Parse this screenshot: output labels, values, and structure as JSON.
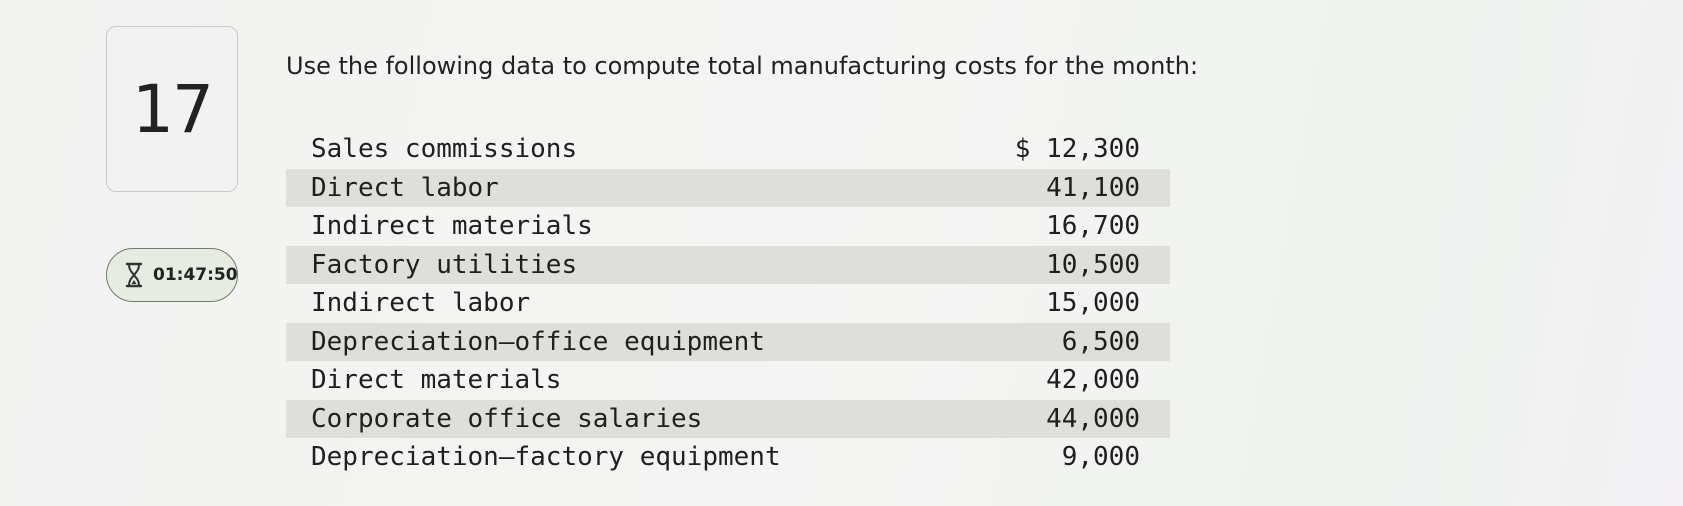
{
  "question": {
    "number": "17",
    "timer": "01:47:50",
    "prompt": "Use the following data to compute total manufacturing costs for the month:"
  },
  "costs": [
    {
      "label": "Sales commissions",
      "amount": "$ 12,300"
    },
    {
      "label": "Direct labor",
      "amount": "41,100"
    },
    {
      "label": "Indirect materials",
      "amount": "16,700"
    },
    {
      "label": "Factory utilities",
      "amount": "10,500"
    },
    {
      "label": "Indirect labor",
      "amount": "15,000"
    },
    {
      "label": "Depreciation—office equipment",
      "amount": "6,500"
    },
    {
      "label": "Direct materials",
      "amount": "42,000"
    },
    {
      "label": "Corporate office salaries",
      "amount": "44,000"
    },
    {
      "label": "Depreciation—factory equipment",
      "amount": "9,000"
    }
  ],
  "icons": {
    "timer": "hourglass-icon"
  },
  "colors": {
    "row_shade": "#dedfdb",
    "timer_border": "#6f7c6a",
    "timer_bg": "#e6ece2"
  }
}
